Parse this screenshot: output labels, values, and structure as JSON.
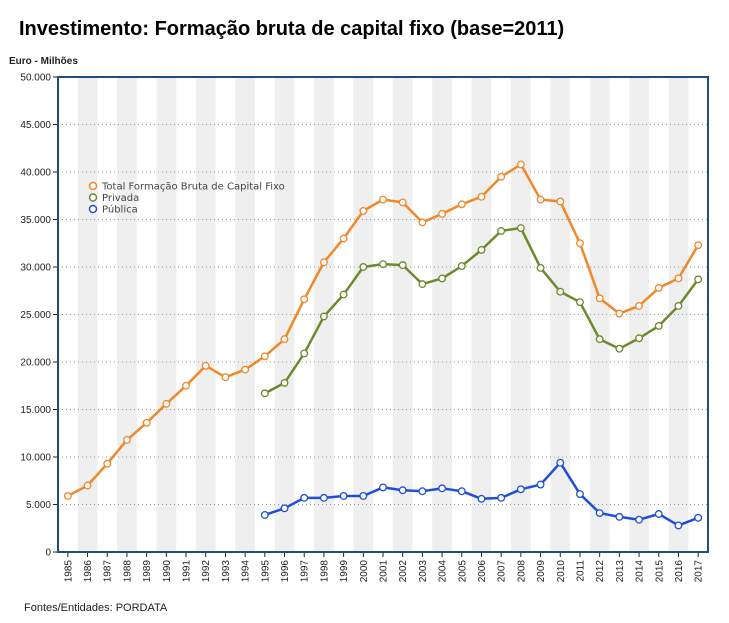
{
  "title": "Investimento: Formação bruta de capital fixo (base=2011)",
  "unit_label": "Euro - Milhões",
  "source": "Fontes/Entidades: PORDATA",
  "colors": {
    "border": "#1f4e79",
    "stripe": "#efefef",
    "grid": "#999999"
  },
  "chart_data": {
    "type": "line",
    "title": "Investimento: Formação bruta de capital fixo (base=2011)",
    "ylabel": "Euro - Milhões",
    "ylim": [
      0,
      50000
    ],
    "yticks": [
      0,
      5000,
      10000,
      15000,
      20000,
      25000,
      30000,
      35000,
      40000,
      45000,
      50000
    ],
    "ytick_labels": [
      "0",
      "5.000",
      "10.000",
      "15.000",
      "20.000",
      "25.000",
      "30.000",
      "35.000",
      "40.000",
      "45.000",
      "50.000"
    ],
    "x": [
      "1985",
      "1986",
      "1987",
      "1988",
      "1989",
      "1990",
      "1991",
      "1992",
      "1993",
      "1994",
      "1995",
      "1996",
      "1997",
      "1998",
      "1999",
      "2000",
      "2001",
      "2002",
      "2003",
      "2004",
      "2005",
      "2006",
      "2007",
      "2008",
      "2009",
      "2010",
      "2011",
      "2012",
      "2013",
      "2014",
      "2015",
      "2016",
      "2017"
    ],
    "grid": "horizontal dotted",
    "legend_placement": "upper-left",
    "series": [
      {
        "name": "Total Formação Bruta de Capital Fixo",
        "color": "#f0882a",
        "values": [
          5900,
          7000,
          9300,
          11800,
          13600,
          15600,
          17500,
          19600,
          18400,
          19200,
          20600,
          22400,
          26600,
          30500,
          33000,
          35900,
          37100,
          36800,
          34700,
          35600,
          36600,
          37400,
          39500,
          40800,
          37100,
          36900,
          32500,
          26700,
          25100,
          25900,
          27800,
          28800,
          32300
        ]
      },
      {
        "name": "Privada",
        "color": "#6b8a2e",
        "values": [
          null,
          null,
          null,
          null,
          null,
          null,
          null,
          null,
          null,
          null,
          16700,
          17800,
          20900,
          24800,
          27100,
          30000,
          30300,
          30200,
          28200,
          28800,
          30100,
          31800,
          33800,
          34100,
          29900,
          27400,
          26300,
          22400,
          21400,
          22500,
          23800,
          25900,
          28700
        ]
      },
      {
        "name": "Pública",
        "color": "#1f4fd8",
        "values": [
          null,
          null,
          null,
          null,
          null,
          null,
          null,
          null,
          null,
          null,
          3900,
          4600,
          5700,
          5700,
          5900,
          5900,
          6800,
          6500,
          6400,
          6700,
          6400,
          5600,
          5700,
          6600,
          7100,
          9400,
          6100,
          4100,
          3700,
          3400,
          4000,
          2800,
          3600
        ]
      }
    ]
  }
}
